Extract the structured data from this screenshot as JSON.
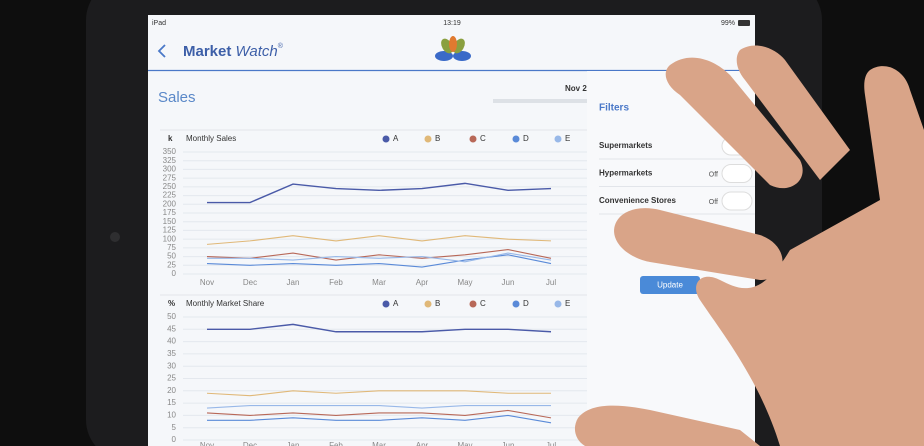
{
  "status_bar": {
    "device": "iPad",
    "time": "13:19",
    "battery": "99%"
  },
  "nav": {
    "title_bold": "Market",
    "title_italic": "Watch",
    "mark": "®"
  },
  "page": {
    "title": "Sales",
    "date": "Nov 2"
  },
  "filters": {
    "title": "Filters",
    "items": [
      {
        "label": "Supermarkets"
      },
      {
        "label": "Hypermarkets",
        "state": "Off"
      },
      {
        "label": "Convenience Stores",
        "state": "Off"
      }
    ],
    "button": "Update"
  },
  "chart_data": [
    {
      "type": "line",
      "title": "Monthly Sales",
      "y_label": "k",
      "categories": [
        "Nov",
        "Dec",
        "Jan",
        "Feb",
        "Mar",
        "Apr",
        "May",
        "Jun",
        "Jul"
      ],
      "ylim": [
        0,
        350
      ],
      "yticks": [
        0,
        25,
        50,
        75,
        100,
        125,
        150,
        175,
        200,
        225,
        250,
        275,
        300,
        325,
        350
      ],
      "grid": true,
      "series": [
        {
          "name": "A",
          "color": "#4a5aa8",
          "values": [
            205,
            205,
            258,
            245,
            240,
            245,
            260,
            240,
            245
          ]
        },
        {
          "name": "B",
          "color": "#e0b878",
          "values": [
            85,
            95,
            110,
            95,
            110,
            95,
            110,
            100,
            95
          ]
        },
        {
          "name": "C",
          "color": "#b86858",
          "values": [
            50,
            45,
            60,
            40,
            55,
            45,
            55,
            70,
            45
          ]
        },
        {
          "name": "D",
          "color": "#5a8ad8",
          "values": [
            30,
            25,
            30,
            25,
            30,
            20,
            40,
            55,
            30
          ]
        },
        {
          "name": "E",
          "color": "#98b8e8",
          "values": [
            45,
            45,
            40,
            50,
            45,
            50,
            35,
            60,
            40
          ]
        }
      ]
    },
    {
      "type": "line",
      "title": "Monthly Market Share",
      "y_label": "%",
      "categories": [
        "Nov",
        "Dec",
        "Jan",
        "Feb",
        "Mar",
        "Apr",
        "May",
        "Jun",
        "Jul"
      ],
      "ylim": [
        0,
        50
      ],
      "yticks": [
        0,
        5,
        10,
        15,
        20,
        25,
        30,
        35,
        40,
        45,
        50
      ],
      "grid": true,
      "series": [
        {
          "name": "A",
          "color": "#4a5aa8",
          "values": [
            45,
            45,
            47,
            44,
            44,
            44,
            45,
            45,
            44
          ]
        },
        {
          "name": "B",
          "color": "#e0b878",
          "values": [
            19,
            18,
            20,
            19,
            20,
            20,
            20,
            19,
            19
          ]
        },
        {
          "name": "C",
          "color": "#b86858",
          "values": [
            11,
            10,
            11,
            10,
            11,
            11,
            10,
            12,
            9
          ]
        },
        {
          "name": "D",
          "color": "#5a8ad8",
          "values": [
            8,
            8,
            9,
            8,
            8,
            9,
            8,
            10,
            7
          ]
        },
        {
          "name": "E",
          "color": "#98b8e8",
          "values": [
            13,
            14,
            14,
            14,
            14,
            13,
            14,
            14,
            14
          ]
        }
      ]
    }
  ]
}
